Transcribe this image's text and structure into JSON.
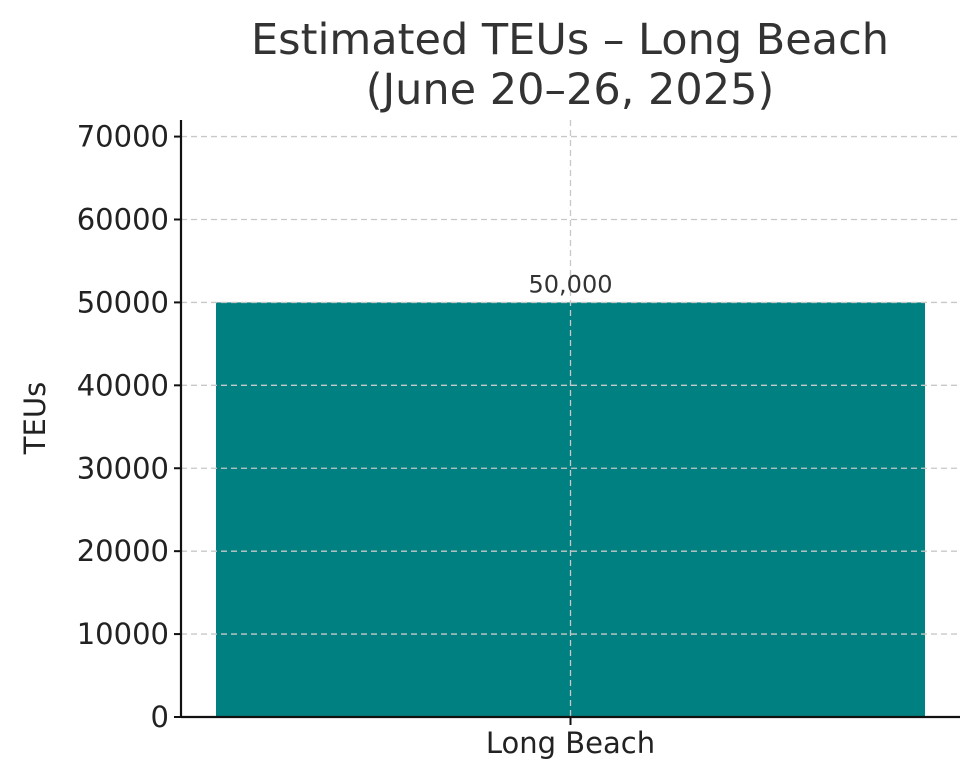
{
  "chart_data": {
    "type": "bar",
    "title_lines": [
      "Estimated TEUs – Long Beach",
      "(June 20–26, 2025)"
    ],
    "xlabel": "",
    "ylabel": "TEUs",
    "categories": [
      "Long Beach"
    ],
    "values": [
      50000
    ],
    "data_labels": [
      "50,000"
    ],
    "ylim": [
      0,
      72000
    ],
    "yticks": [
      0,
      10000,
      20000,
      30000,
      40000,
      50000,
      60000,
      70000
    ],
    "ytick_labels": [
      "0",
      "10000",
      "20000",
      "30000",
      "40000",
      "50000",
      "60000",
      "70000"
    ],
    "grid": true,
    "bar_color": "#008080"
  }
}
